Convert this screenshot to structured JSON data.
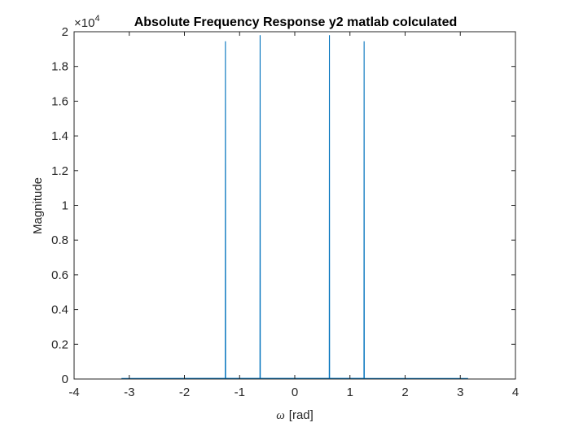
{
  "chart_data": {
    "type": "line",
    "title": "Absolute Frequency Response y2 matlab colculated",
    "xlabel_symbol": "ω",
    "xlabel_unit": "[rad]",
    "ylabel": "Magnitude",
    "exponent_multiplier": "×10",
    "exponent_power": "4",
    "xlim": [
      -4,
      4
    ],
    "ylim": [
      0,
      20000
    ],
    "xticks": [
      -4,
      -3,
      -2,
      -1,
      0,
      1,
      2,
      3,
      4
    ],
    "xtick_labels": [
      "-4",
      "-3",
      "-2",
      "-1",
      "0",
      "1",
      "2",
      "3",
      "4"
    ],
    "yticks": [
      0,
      2000,
      4000,
      6000,
      8000,
      10000,
      12000,
      14000,
      16000,
      18000,
      20000
    ],
    "ytick_labels": [
      "0",
      "0.2",
      "0.4",
      "0.6",
      "0.8",
      "1",
      "1.2",
      "1.4",
      "1.6",
      "1.8",
      "2"
    ],
    "grid": false,
    "legend": "none",
    "series": [
      {
        "color": "#0072BD",
        "x": [
          -3.1416,
          -1.26,
          -1.257,
          -1.254,
          -0.631,
          -0.628,
          -0.625,
          0.625,
          0.628,
          0.631,
          1.254,
          1.257,
          1.26,
          3.1416
        ],
        "y": [
          30,
          40,
          19450,
          40,
          40,
          19800,
          40,
          40,
          19800,
          40,
          40,
          19450,
          40,
          30
        ]
      }
    ]
  }
}
